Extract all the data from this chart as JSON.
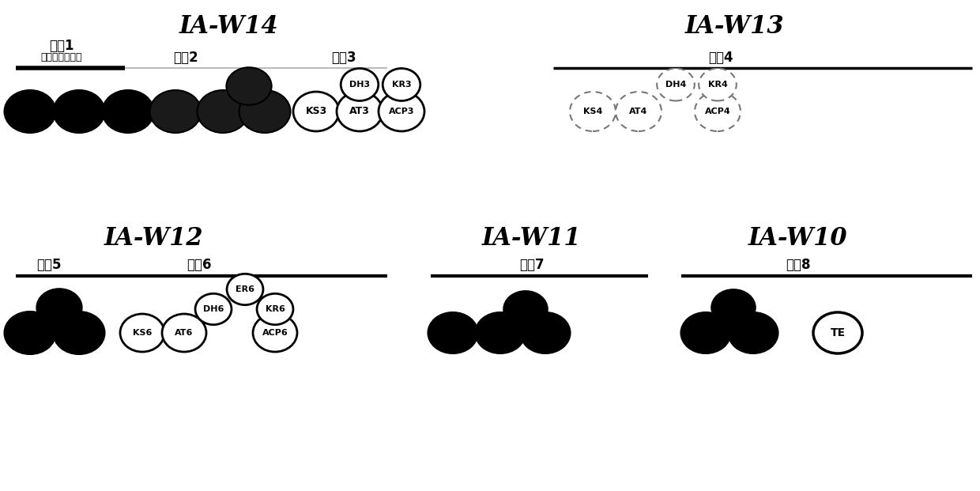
{
  "title_top_left": "IA-W14",
  "title_top_right": "IA-W13",
  "title_bot_left": "IA-W12",
  "title_bot_mid": "IA-W11",
  "title_bot_right": "IA-W10",
  "mod1_label": "模兗1",
  "mod1_sub": "（加载模块域）",
  "mod2_label": "模兗2",
  "mod3_label": "模兗3",
  "mod4_label": "模兗4",
  "mod5_label": "模兗5",
  "mod6_label": "模兗6",
  "mod7_label": "模兗7",
  "mod8_label": "模兗8",
  "background": "#ffffff",
  "font_size_title": 22,
  "font_size_module": 12,
  "font_size_domain": 8.5
}
